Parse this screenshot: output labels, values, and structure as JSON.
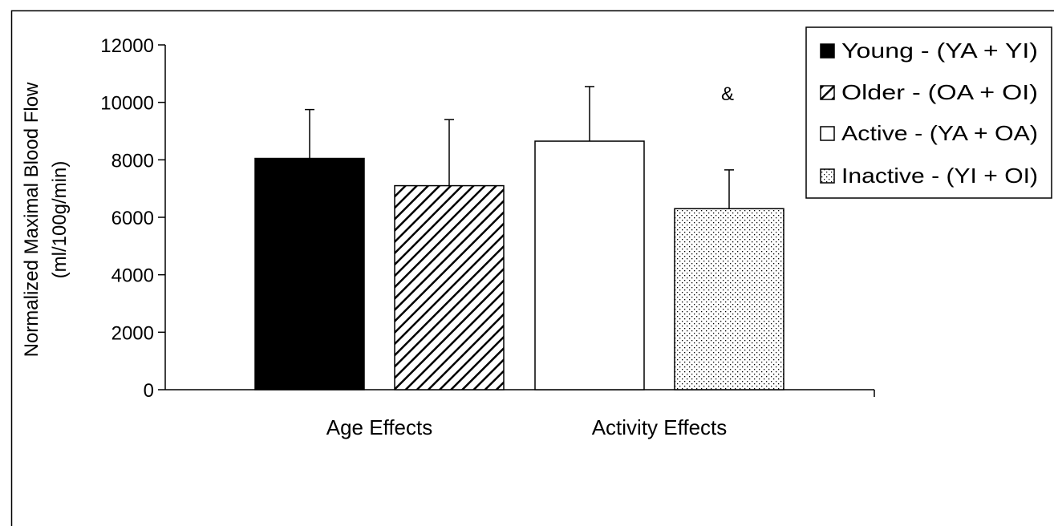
{
  "chart_data": {
    "type": "bar",
    "ylabel_lines": [
      "Normalized Maximal Blood Flow",
      "(ml/100g/min)"
    ],
    "ylim": [
      0,
      12000
    ],
    "yticks": [
      0,
      2000,
      4000,
      6000,
      8000,
      10000,
      12000
    ],
    "groups": [
      {
        "label": "Age Effects",
        "bars": [
          0,
          1
        ]
      },
      {
        "label": "Activity Effects",
        "bars": [
          2,
          3
        ]
      }
    ],
    "bars": [
      {
        "name": "Young - (YA + YI)",
        "value": 8050,
        "error": 1700,
        "fill": "solid-black"
      },
      {
        "name": "Older - (OA + OI)",
        "value": 7100,
        "error": 2300,
        "fill": "diagonal-hatch"
      },
      {
        "name": "Active - (YA + OA)",
        "value": 8650,
        "error": 1900,
        "fill": "white"
      },
      {
        "name": "Inactive - (YI + OI)",
        "value": 6300,
        "error": 1350,
        "fill": "dotted"
      }
    ],
    "annotations": [
      {
        "text": "&",
        "bar": 3
      }
    ],
    "legend_position": "top-right",
    "grid": false,
    "colors": {
      "line": "#000000",
      "background": "#ffffff"
    }
  }
}
